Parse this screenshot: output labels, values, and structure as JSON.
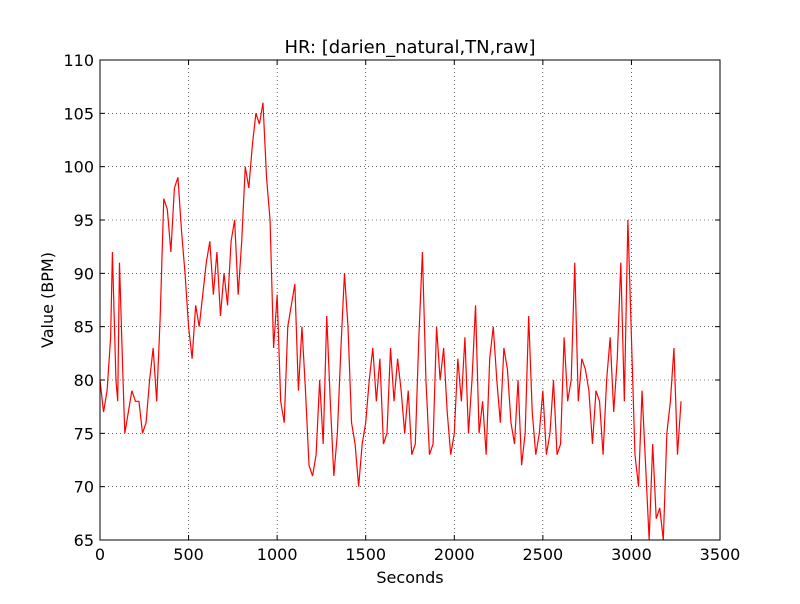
{
  "chart_data": {
    "type": "line",
    "title": "HR: [darien_natural,TN,raw]",
    "x_label": "Seconds",
    "y_label": "Value (BPM)",
    "x": [
      0,
      20,
      40,
      60,
      70,
      90,
      100,
      110,
      130,
      140,
      160,
      180,
      200,
      220,
      240,
      260,
      280,
      300,
      320,
      340,
      360,
      380,
      400,
      420,
      440,
      460,
      480,
      500,
      520,
      540,
      560,
      580,
      600,
      620,
      640,
      660,
      680,
      700,
      720,
      740,
      760,
      780,
      800,
      820,
      840,
      860,
      880,
      900,
      920,
      940,
      960,
      980,
      1000,
      1020,
      1040,
      1060,
      1080,
      1100,
      1120,
      1140,
      1160,
      1180,
      1200,
      1220,
      1240,
      1260,
      1280,
      1300,
      1320,
      1340,
      1360,
      1380,
      1400,
      1420,
      1440,
      1460,
      1480,
      1500,
      1520,
      1540,
      1560,
      1580,
      1600,
      1620,
      1640,
      1660,
      1680,
      1700,
      1720,
      1740,
      1760,
      1780,
      1800,
      1820,
      1840,
      1860,
      1880,
      1900,
      1920,
      1940,
      1960,
      1980,
      2000,
      2020,
      2040,
      2060,
      2080,
      2100,
      2120,
      2140,
      2160,
      2180,
      2200,
      2220,
      2240,
      2260,
      2280,
      2300,
      2320,
      2340,
      2360,
      2380,
      2400,
      2420,
      2440,
      2460,
      2480,
      2500,
      2520,
      2540,
      2560,
      2580,
      2600,
      2620,
      2640,
      2660,
      2680,
      2700,
      2720,
      2740,
      2760,
      2780,
      2800,
      2820,
      2840,
      2860,
      2880,
      2900,
      2920,
      2940,
      2960,
      2980,
      3000,
      3020,
      3040,
      3060,
      3080,
      3100,
      3120,
      3140,
      3160,
      3180,
      3200,
      3220,
      3240,
      3260,
      3280
    ],
    "series": [
      {
        "color": "#ff0000",
        "values": [
          80,
          77,
          79,
          84,
          92,
          80,
          78,
          91,
          80,
          75,
          77,
          79,
          78,
          78,
          75,
          76,
          80,
          83,
          78,
          86,
          97,
          96,
          92,
          98,
          99,
          94,
          90,
          85,
          82,
          87,
          85,
          88,
          91,
          93,
          88,
          92,
          86,
          90,
          87,
          93,
          95,
          88,
          93,
          100,
          98,
          102,
          105,
          104,
          106,
          99,
          95,
          83,
          88,
          78,
          76,
          85,
          87,
          89,
          79,
          85,
          79,
          72,
          71,
          73,
          80,
          74,
          86,
          78,
          71,
          75,
          83,
          90,
          85,
          76,
          74,
          70,
          74,
          76,
          80,
          83,
          78,
          82,
          74,
          75,
          83,
          78,
          82,
          79,
          75,
          79,
          73,
          74,
          84,
          92,
          80,
          73,
          74,
          85,
          80,
          83,
          77,
          73,
          75,
          82,
          78,
          84,
          75,
          80,
          87,
          75,
          78,
          73,
          82,
          85,
          80,
          76,
          83,
          81,
          76,
          74,
          80,
          72,
          75,
          86,
          77,
          73,
          75,
          79,
          73,
          75,
          80,
          73,
          74,
          84,
          78,
          80,
          91,
          78,
          82,
          81,
          79,
          74,
          79,
          78,
          73,
          80,
          84,
          77,
          82,
          91,
          78,
          95,
          84,
          73,
          70,
          79,
          72,
          65,
          74,
          67,
          68,
          65,
          75,
          78,
          83,
          73,
          78
        ]
      }
    ],
    "xlim": [
      0,
      3500
    ],
    "xticks": [
      0,
      500,
      1000,
      1500,
      2000,
      2500,
      3000,
      3500
    ],
    "ylim": [
      65,
      110
    ],
    "yticks": [
      65,
      70,
      75,
      80,
      85,
      90,
      95,
      100,
      105,
      110
    ],
    "grid": true
  }
}
